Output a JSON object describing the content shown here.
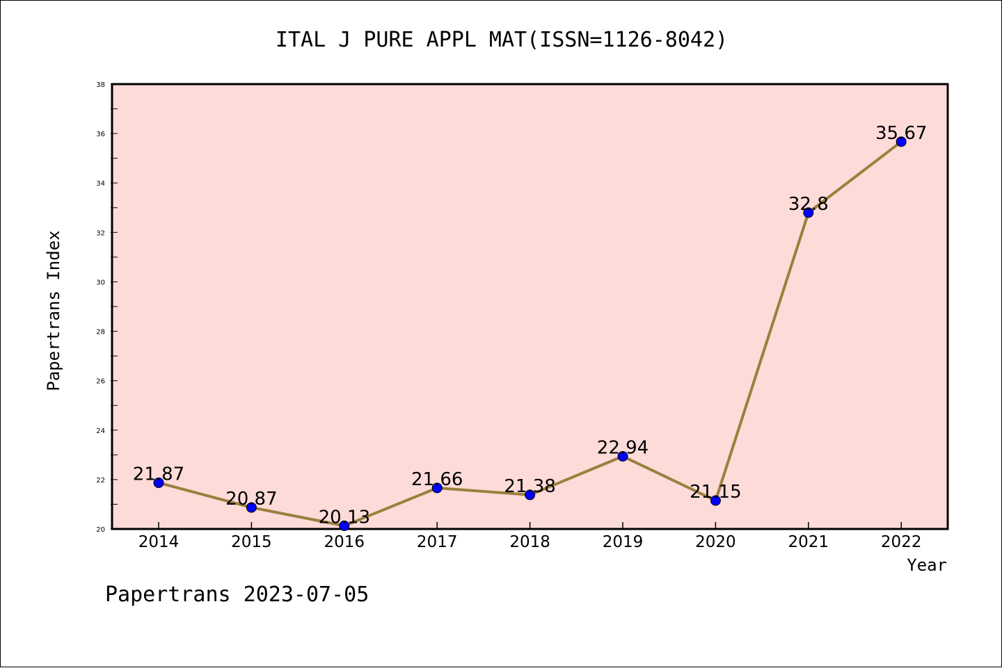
{
  "chart_data": {
    "type": "line",
    "title": "ITAL J PURE APPL MAT(ISSN=1126-8042)",
    "xlabel": "Year",
    "ylabel": "Papertrans Index",
    "categories": [
      "2014",
      "2015",
      "2016",
      "2017",
      "2018",
      "2019",
      "2020",
      "2021",
      "2022"
    ],
    "values": [
      21.87,
      20.87,
      20.13,
      21.66,
      21.38,
      22.94,
      21.15,
      32.8,
      35.67
    ],
    "data_labels": [
      "21.87",
      "20.87",
      "20.13",
      "21.66",
      "21.38",
      "22.94",
      "21.15",
      "32.8",
      "35.67"
    ],
    "ylim": [
      20,
      38
    ],
    "yticks": [
      20,
      22,
      24,
      26,
      28,
      30,
      32,
      34,
      36,
      38
    ],
    "grid": false,
    "legend": "none"
  },
  "footer": "Papertrans 2023-07-05",
  "colors": {
    "plot_background": "#fddbd9",
    "line": "#9b7f3c",
    "marker": "#0000ff",
    "axis": "#000000"
  }
}
